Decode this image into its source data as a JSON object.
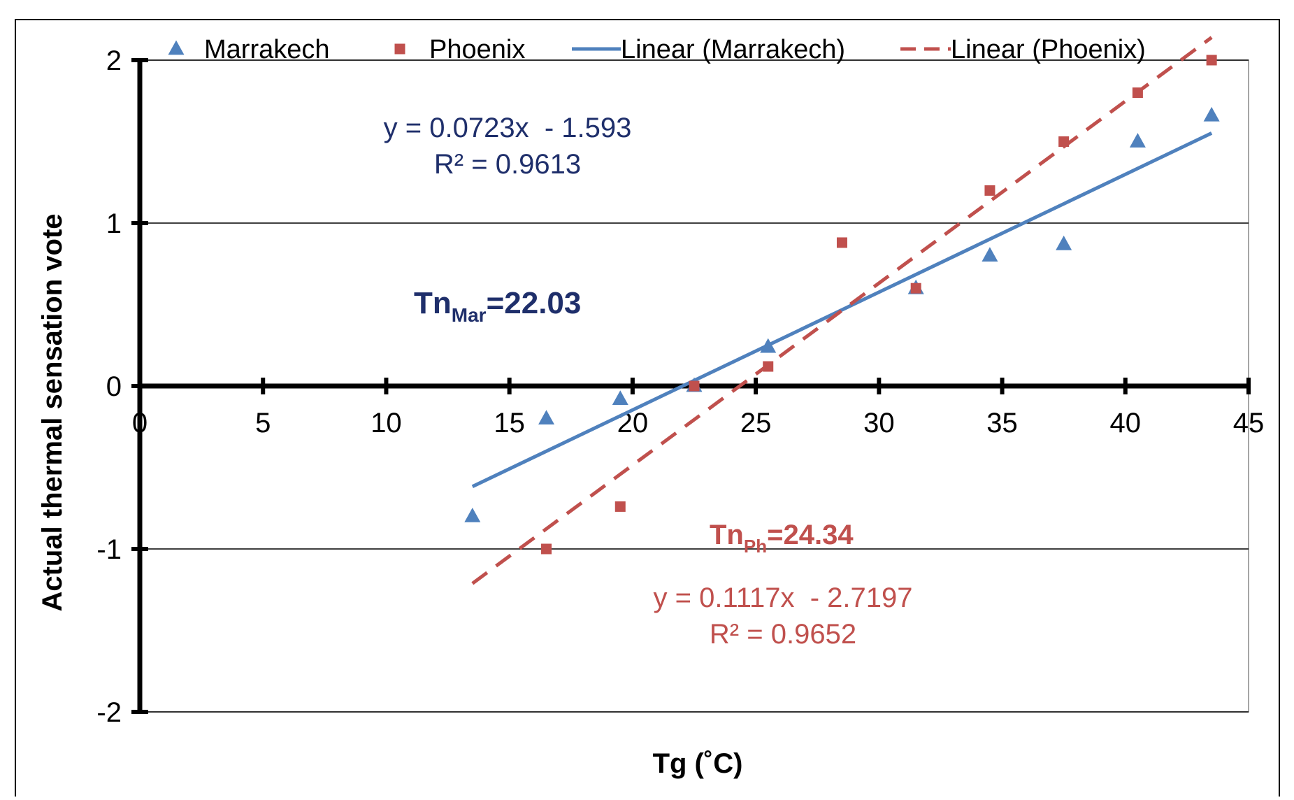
{
  "chart_data": {
    "type": "scatter",
    "xlabel": "Tg (˚C)",
    "ylabel": "Actual thermal sensation vote",
    "xlim": [
      0,
      45
    ],
    "ylim": [
      -2,
      2
    ],
    "x_ticks": [
      "0",
      "5",
      "10",
      "15",
      "20",
      "25",
      "30",
      "35",
      "40",
      "45"
    ],
    "y_ticks": [
      "-2",
      "-1",
      "0",
      "1",
      "2"
    ],
    "grid": "horizontal",
    "legend_position": "top",
    "series": [
      {
        "name": "Marrakech",
        "marker": "triangle",
        "color": "#4f81bd",
        "x": [
          13.5,
          16.5,
          19.5,
          22.5,
          25.5,
          31.5,
          34.5,
          37.5,
          40.5,
          43.5
        ],
        "y": [
          -0.8,
          -0.2,
          -0.08,
          0.0,
          0.24,
          0.6,
          0.8,
          0.87,
          1.5,
          1.66
        ]
      },
      {
        "name": "Phoenix",
        "marker": "square",
        "color": "#c0504d",
        "x": [
          16.5,
          19.5,
          22.5,
          25.5,
          28.5,
          31.5,
          34.5,
          37.5,
          40.5,
          43.5
        ],
        "y": [
          -1.0,
          -0.74,
          0.0,
          0.12,
          0.88,
          0.6,
          1.2,
          1.5,
          1.8,
          2.0
        ]
      }
    ],
    "trendlines": [
      {
        "name": "Linear (Marrakech)",
        "color": "#4f81bd",
        "style": "solid",
        "slope": 0.0723,
        "intercept": -1.593,
        "x_range": [
          13.5,
          43.5
        ],
        "equation": "y = 0.0723x  - 1.593",
        "r2": "R² = 0.9613"
      },
      {
        "name": "Linear (Phoenix)",
        "color": "#c0504d",
        "style": "dashed",
        "slope": 0.1117,
        "intercept": -2.7197,
        "x_range": [
          13.5,
          43.5
        ],
        "equation": "y = 0.1117x  - 2.7197",
        "r2": "R² = 0.9652"
      }
    ],
    "annotations": {
      "tn_mar": {
        "base": "Tn",
        "sub": "Mar",
        "value": "=22.03"
      },
      "tn_ph": {
        "base": "Tn",
        "sub": "Ph",
        "value": "=24.34"
      }
    }
  }
}
